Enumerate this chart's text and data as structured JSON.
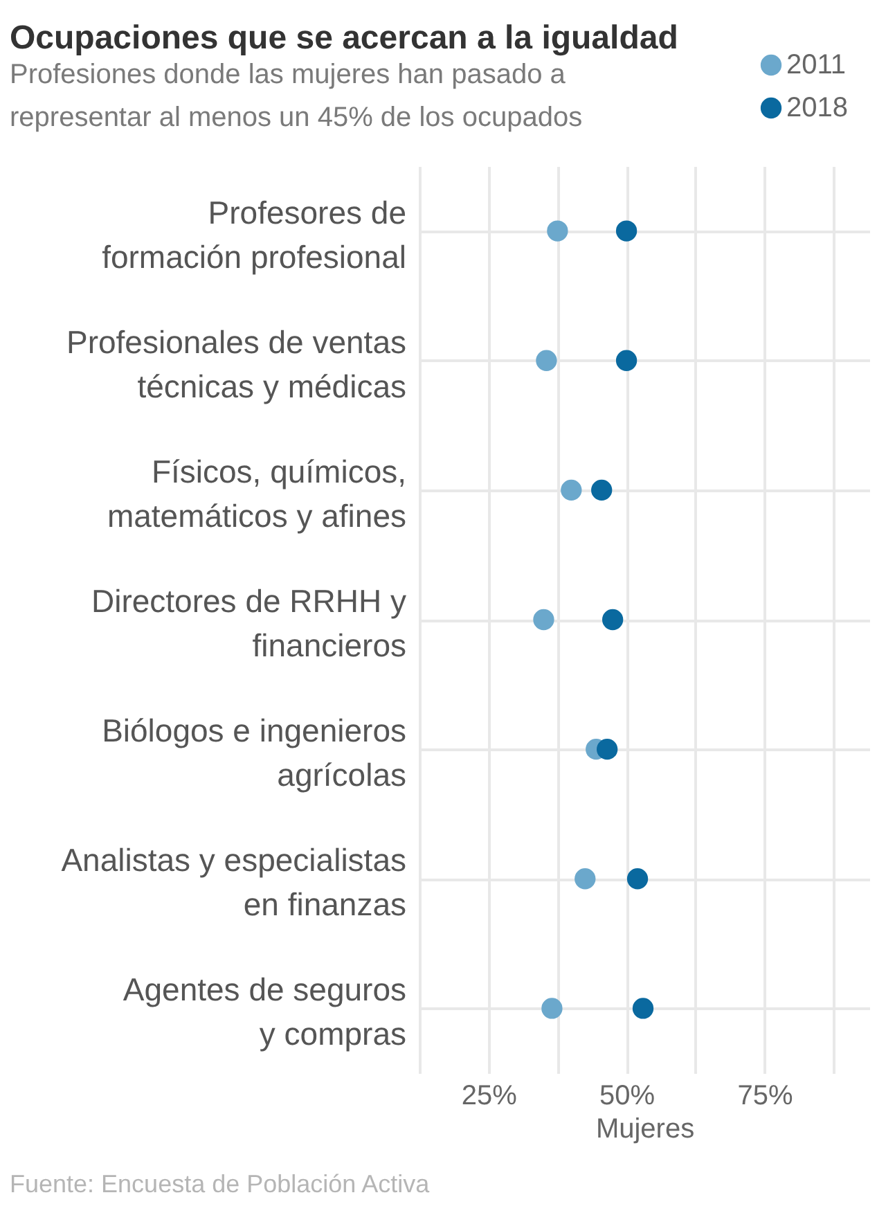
{
  "chart_data": {
    "type": "scatter",
    "title": "Ocupaciones que se acercan a la igualdad",
    "subtitle": "Profesiones donde las mujeres han pasado a\nrepresentar al menos un 45% de los ocupados",
    "xlabel": "Mujeres",
    "categories": [
      "Profesores de\nformación profesional",
      "Profesionales de ventas\ntécnicas y médicas",
      "Físicos, químicos,\nmatemáticos y afines",
      "Directores de RRHH y\nfinancieros",
      "Biólogos e ingenieros\nagrícolas",
      "Analistas y especialistas\nen finanzas",
      "Agentes de seguros\ny compras"
    ],
    "orientation": "horizontal",
    "series": [
      {
        "name": "2011",
        "color": "#6ba8cc",
        "values": [
          37.5,
          35.5,
          40,
          35,
          44.5,
          42.5,
          36.5
        ]
      },
      {
        "name": "2018",
        "color": "#0a699f",
        "values": [
          50,
          50,
          45.5,
          47.5,
          46.5,
          52,
          53
        ]
      }
    ],
    "xlim": [
      12.5,
      94
    ],
    "xticks": [
      {
        "value": 12.5,
        "label": null
      },
      {
        "value": 25,
        "label": "25%"
      },
      {
        "value": 37.5,
        "label": null
      },
      {
        "value": 50,
        "label": "50%"
      },
      {
        "value": 62.5,
        "label": null
      },
      {
        "value": 75,
        "label": "75%"
      },
      {
        "value": 87.5,
        "label": null
      }
    ],
    "grid": true,
    "legend": "top right",
    "marker": "circle",
    "annotations": [
      "Fuente: Encuesta de Población Activa"
    ]
  }
}
